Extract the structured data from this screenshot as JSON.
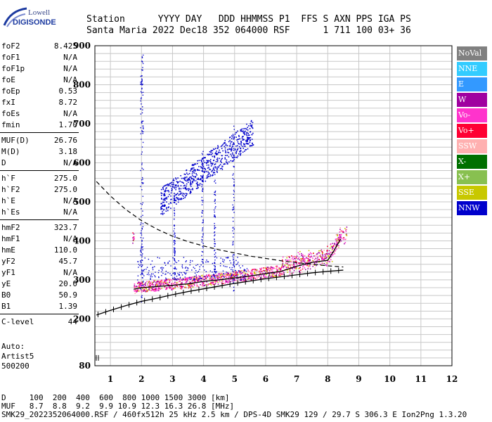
{
  "logo": {
    "line1": "Lowell",
    "line2": "DIGISONDE"
  },
  "header": {
    "line1": "Station      YYYY DAY   DDD HHMMSS P1  FFS S AXN PPS IGA PS",
    "line2": "Santa Maria 2022 Dec18 352 064000 RSF      1 711 100 03+ 36"
  },
  "params": [
    {
      "k": "foF2",
      "v": "8.425"
    },
    {
      "k": "foF1",
      "v": "N/A"
    },
    {
      "k": "foF1p",
      "v": "N/A"
    },
    {
      "k": "foE",
      "v": "N/A"
    },
    {
      "k": "foEp",
      "v": "0.53"
    },
    {
      "k": "fxI",
      "v": "8.72"
    },
    {
      "k": "foEs",
      "v": "N/A"
    },
    {
      "k": "fmin",
      "v": "1.70"
    },
    {
      "k": "MUF(D)",
      "v": "26.76"
    },
    {
      "k": "M(D)",
      "v": "3.18"
    },
    {
      "k": "D",
      "v": "N/A"
    },
    {
      "k": "h`F",
      "v": "275.0"
    },
    {
      "k": "h`F2",
      "v": "275.0"
    },
    {
      "k": "h`E",
      "v": "N/A"
    },
    {
      "k": "h`Es",
      "v": "N/A"
    },
    {
      "k": "hmF2",
      "v": "323.7"
    },
    {
      "k": "hmF1",
      "v": "N/A"
    },
    {
      "k": "hmE",
      "v": "110.0"
    },
    {
      "k": "yF2",
      "v": "45.7"
    },
    {
      "k": "yF1",
      "v": "N/A"
    },
    {
      "k": "yE",
      "v": "20.0"
    },
    {
      "k": "B0",
      "v": "50.9"
    },
    {
      "k": "B1",
      "v": "1.39"
    },
    {
      "k": "C-level",
      "v": "44"
    }
  ],
  "auto": [
    "Auto:",
    "Artist5",
    "500200"
  ],
  "legend": [
    {
      "label": "NoVal",
      "color": "#808080"
    },
    {
      "label": "NNE",
      "color": "#33ccff"
    },
    {
      "label": "E",
      "color": "#3399ff"
    },
    {
      "label": "W",
      "color": "#a000a0"
    },
    {
      "label": "Vo-",
      "color": "#ff33cc"
    },
    {
      "label": "Vo+",
      "color": "#ff0033"
    },
    {
      "label": "SSW",
      "color": "#ffb0b0"
    },
    {
      "label": "X-",
      "color": "#007000"
    },
    {
      "label": "X+",
      "color": "#88c050"
    },
    {
      "label": "SSE",
      "color": "#c8c800"
    },
    {
      "label": "NNW",
      "color": "#0000cc"
    }
  ],
  "footer": {
    "line1": "D     100  200  400  600  800 1000 1500 3000 [km]",
    "line2": "MUF   8.7  8.8  9.2  9.9 10.9 12.3 16.3 26.8 [MHz]",
    "line3": "SMK29_2022352064000.RSF / 460fx512h 25 kHz 2.5 km / DPS-4D SMK29 129 / 29.7 S 306.3 E Ion2Png 1.3.20"
  },
  "chart_data": {
    "type": "scatter",
    "xlim": [
      0.5,
      12
    ],
    "ylim": [
      80,
      900
    ],
    "xlabel": "",
    "ylabel": "",
    "xticks": [
      1,
      2,
      3,
      4,
      5,
      6,
      7,
      8,
      9,
      10,
      11,
      12
    ],
    "yticks": [
      80,
      200,
      300,
      400,
      500,
      600,
      700,
      800,
      900
    ],
    "grid": true,
    "series": [
      {
        "role": "O-trace",
        "x": [
          1.75,
          2.0,
          2.5,
          3.0,
          3.5,
          4.0,
          4.5,
          5.0,
          5.5,
          6.0,
          6.5,
          7.0,
          7.5,
          8.0,
          8.2,
          8.42
        ],
        "y": [
          276,
          280,
          283,
          286,
          290,
          296,
          300,
          305,
          310,
          316,
          322,
          335,
          345,
          350,
          375,
          405
        ]
      },
      {
        "role": "profile-ticks",
        "x": [
          0.55,
          1.0,
          1.5,
          2.0,
          2.5,
          3.0,
          3.5,
          4.0,
          4.5,
          5.0,
          5.5,
          6.0,
          6.5,
          7.0,
          7.5,
          8.0,
          8.5
        ],
        "y": [
          210,
          222,
          234,
          245,
          253,
          262,
          270,
          277,
          284,
          291,
          297,
          303,
          308,
          313,
          318,
          322,
          325
        ]
      },
      {
        "role": "dashed-curve",
        "x": [
          0.55,
          1.0,
          1.5,
          2.0,
          2.5,
          3.0,
          3.5,
          4.0,
          4.5,
          5.0,
          5.5,
          6.0,
          6.5,
          7.0,
          7.5,
          8.0,
          8.5
        ],
        "y": [
          552,
          515,
          480,
          452,
          430,
          412,
          398,
          387,
          377,
          369,
          361,
          355,
          349,
          344,
          340,
          336,
          333
        ]
      }
    ]
  }
}
